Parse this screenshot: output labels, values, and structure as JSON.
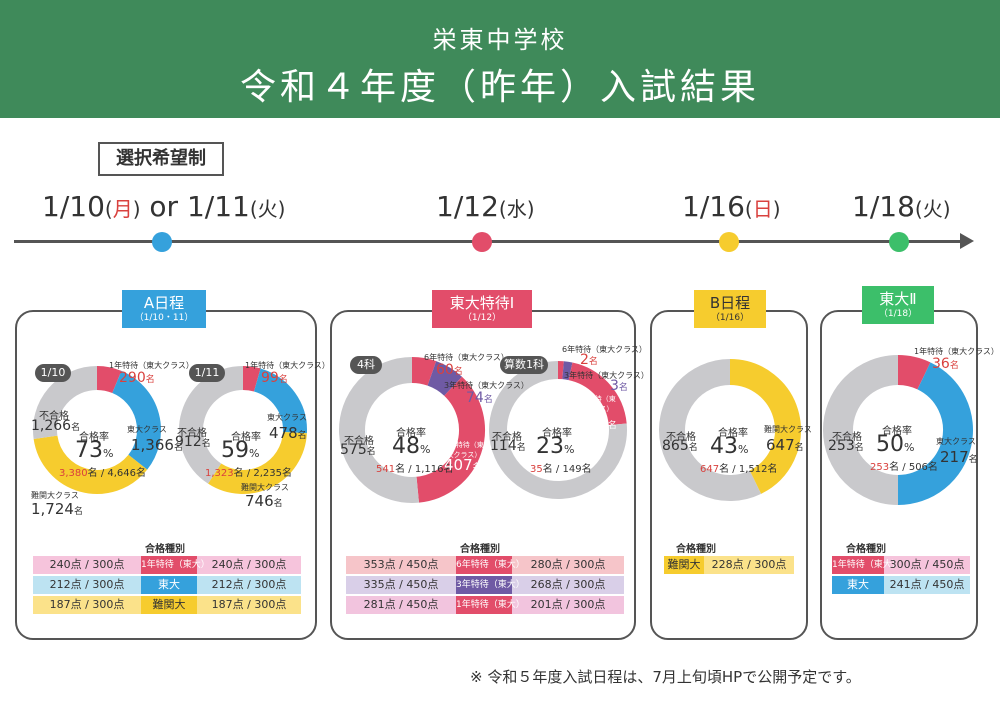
{
  "header": {
    "school": "栄東中学校",
    "title": "令和４年度（昨年）入試結果"
  },
  "select_label": "選択希望制",
  "timeline": [
    {
      "date": "1/10",
      "dow": "月",
      "sep": " or ",
      "date2": "1/11",
      "dow2": "火"
    },
    {
      "date": "1/12",
      "dow": "水"
    },
    {
      "date": "1/16",
      "dow": "日"
    },
    {
      "date": "1/18",
      "dow": "火"
    }
  ],
  "colors": {
    "header": "#3f8a5a",
    "blue": "#35a1dc",
    "red": "#e24d6a",
    "yellow": "#f6cc2e",
    "green": "#3cbf6a",
    "gray": "#c9c9cc",
    "purple": "#6f5aa4"
  },
  "panels": {
    "a": {
      "ribbon": "A日程",
      "ribbon_sub": "（1/10・11）",
      "left": {
        "tag": "1/10",
        "top_label": "1年特待（東大クラス）",
        "top_num": "290",
        "top_unit": "名",
        "fail_label": "不合格",
        "fail_num": "1,266",
        "fail_unit": "名",
        "rate_label": "合格率",
        "rate": "73",
        "pct": "%",
        "pass": "3,380",
        "total": "4,646",
        "right_label": "東大クラス",
        "right_num": "1,366",
        "right_unit": "名",
        "bottom_label": "難関大クラス",
        "bottom_num": "1,724",
        "bottom_unit": "名"
      },
      "right": {
        "tag": "1/11",
        "top_label": "1年特待（東大クラス）",
        "top_num": "99",
        "top_unit": "名",
        "fail_label": "不合格",
        "fail_num": "912",
        "fail_unit": "名",
        "rate_label": "合格率",
        "rate": "59",
        "pct": "%",
        "pass": "1,323",
        "total": "2,235",
        "right_label": "東大クラス",
        "right_num": "478",
        "right_unit": "名",
        "bottom_label": "難関大クラス",
        "bottom_num": "746",
        "bottom_unit": "名"
      },
      "table_title": "合格種別",
      "rows": [
        {
          "l": "240点 / 300点",
          "m": "1年特待（東大）",
          "r": "240点 / 300点"
        },
        {
          "l": "212点 / 300点",
          "m": "東大",
          "r": "212点 / 300点"
        },
        {
          "l": "187点 / 300点",
          "m": "難関大",
          "r": "187点 / 300点"
        }
      ]
    },
    "b": {
      "ribbon": "東大特待Ⅰ",
      "ribbon_sub": "（1/12）",
      "left": {
        "tag": "4科",
        "top_label": "6年特待（東大クラス）",
        "top_num": "60",
        "top_unit": "名",
        "mid_label": "3年特待（東大クラス）",
        "mid_num": "74",
        "mid_unit": "名",
        "fail_label": "不合格",
        "fail_num": "575",
        "fail_unit": "名",
        "rate_label": "合格率",
        "rate": "48",
        "pct": "%",
        "pass": "541",
        "total": "1,116",
        "right_label": "1年特待（東大クラス）",
        "right_num": "407",
        "right_unit": "名"
      },
      "right": {
        "tag": "算数1科",
        "top_label": "6年特待（東大クラス）",
        "top_num": "2",
        "top_unit": "名",
        "mid_label": "3年特待（東大クラス）",
        "mid_num": "3",
        "mid_unit": "名",
        "fail_label": "不合格",
        "fail_num": "114",
        "fail_unit": "名",
        "rate_label": "合格率",
        "rate": "23",
        "pct": "%",
        "pass": "35",
        "total": "149",
        "right_label": "1年特待（東大クラス）",
        "right_num": "30",
        "right_unit": "名"
      },
      "table_title": "合格種別",
      "rows": [
        {
          "l": "353点 / 450点",
          "m": "6年特待（東大）",
          "r": "280点 / 300点"
        },
        {
          "l": "335点 / 450点",
          "m": "3年特待（東大）",
          "r": "268点 / 300点"
        },
        {
          "l": "281点 / 450点",
          "m": "1年特待（東大）",
          "r": "201点 / 300点"
        }
      ]
    },
    "c": {
      "ribbon": "B日程",
      "ribbon_sub": "（1/16）",
      "fail_label": "不合格",
      "fail_num": "865",
      "fail_unit": "名",
      "rate_label": "合格率",
      "rate": "43",
      "pct": "%",
      "pass": "647",
      "total": "1,512",
      "right_label": "難関大クラス",
      "right_num": "647",
      "right_unit": "名",
      "table_title": "合格種別",
      "rows": [
        {
          "m": "難関大",
          "r": "228点 / 300点"
        }
      ]
    },
    "d": {
      "ribbon": "東大Ⅱ",
      "ribbon_sub": "（1/18）",
      "top_label": "1年特待（東大クラス）",
      "top_num": "36",
      "top_unit": "名",
      "fail_label": "不合格",
      "fail_num": "253",
      "fail_unit": "名",
      "rate_label": "合格率",
      "rate": "50",
      "pct": "%",
      "pass": "253",
      "total": "506",
      "right_label": "東大クラス",
      "right_num": "217",
      "right_unit": "名",
      "table_title": "合格種別",
      "rows": [
        {
          "m": "1年特待（東大）",
          "r": "300点 / 450点"
        },
        {
          "m": "東大",
          "r": "241点 / 450点"
        }
      ]
    }
  },
  "footer": "※ 令和５年度入試日程は、7月上旬頃HPで公開予定です。"
}
